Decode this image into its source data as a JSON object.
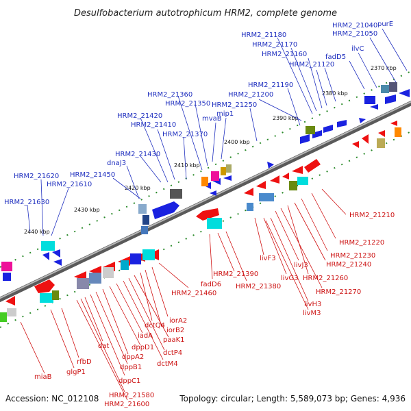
{
  "title": "Desulfobacterium autotrophicum HRM2, complete genome",
  "footer": {
    "accession": "Accession: NC_012108",
    "summary": "Topology: circular; Length: 5,589,073 bp; Genes: 4,936"
  },
  "colors": {
    "backbone": "#8a8a8a",
    "tick": "#2a8a2a",
    "forward_gene": "#1a22e0",
    "reverse_gene": "#ee1111",
    "label_forward": "#1f2fbf",
    "label_reverse": "#cc1111"
  },
  "kbp_ticks": [
    "2370 kbp",
    "2380 kbp",
    "2390 kbp",
    "2400 kbp",
    "2410 kbp",
    "2420 kbp",
    "2430 kbp",
    "2440 kbp"
  ],
  "forward_labels": [
    "purE",
    "HRM2_21040",
    "HRM2_21050",
    "ilvC",
    "fadD5",
    "HRM2_21120",
    "HRM2_21160",
    "HRM2_21170",
    "HRM2_21180",
    "HRM2_21190",
    "HRM2_21200",
    "HRM2_21250",
    "mip1",
    "mvaB",
    "HRM2_21350",
    "HRM2_21360",
    "HRM2_21370",
    "HRM2_21410",
    "HRM2_21420",
    "dnaJ3",
    "HRM2_21430",
    "HRM2_21450",
    "HRM2_21610",
    "HRM2_21620",
    "HRM2_21630"
  ],
  "reverse_labels": [
    "HRM2_21210",
    "HRM2_21220",
    "HRM2_21230",
    "HRM2_21240",
    "HRM2_21260",
    "HRM2_21270",
    "livJ3",
    "livF3",
    "livG3",
    "livH3",
    "livM3",
    "HRM2_21380",
    "HRM2_21390",
    "fadD6",
    "HRM2_21460",
    "iorA2",
    "iorB2",
    "dctQ4",
    "paaK1",
    "dctP4",
    "dctM4",
    "iadA",
    "dppD1",
    "dppA2",
    "dppB1",
    "dppC1",
    "dat",
    "HRM2_21580",
    "HRM2_21600",
    "rfbD",
    "glgP1",
    "miaB"
  ]
}
